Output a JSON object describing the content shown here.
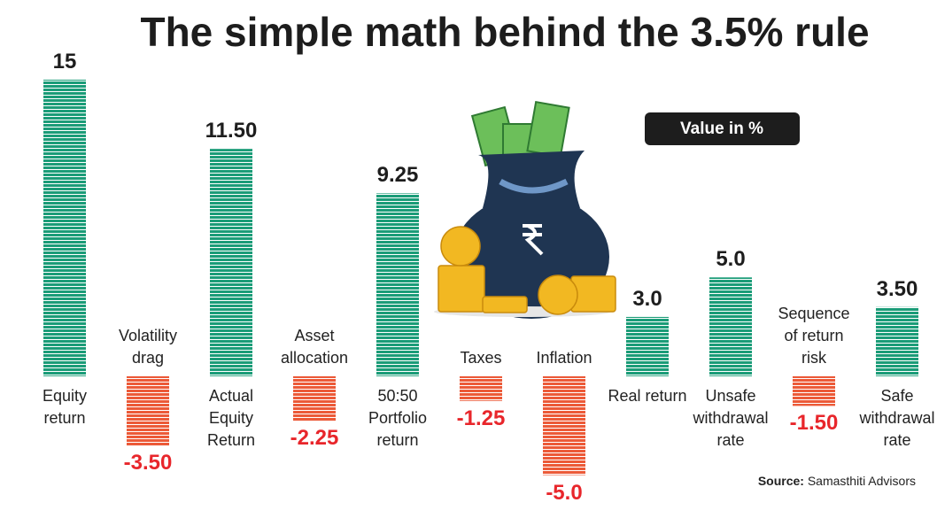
{
  "chart_data": {
    "type": "bar",
    "title": "The simple math behind the 3.5% rule",
    "badge": "Value in %",
    "source_label": "Source:",
    "source": "Samasthiti Advisors",
    "categories": [
      "Equity return",
      "Volatility drag",
      "Actual Equity Return",
      "Asset allocation",
      "50:50 Portfolio return",
      "Taxes",
      "Inflation",
      "Real return",
      "Unsafe withdrawal rate",
      "Sequence of return risk",
      "Safe withdrawal rate"
    ],
    "values": [
      15,
      -3.5,
      11.5,
      -2.25,
      9.25,
      -1.25,
      -5.0,
      3.0,
      5.0,
      -1.5,
      3.5
    ],
    "value_labels": [
      "15",
      "-3.50",
      "11.50",
      "-2.25",
      "9.25",
      "-1.25",
      "-5.0",
      "3.0",
      "5.0",
      "-1.50",
      "3.50"
    ],
    "positive_color": "#1b9c78",
    "negative_color": "#ec5a38",
    "negative_label_color": "#e8262b",
    "ylim": [
      -5.2,
      15
    ]
  }
}
